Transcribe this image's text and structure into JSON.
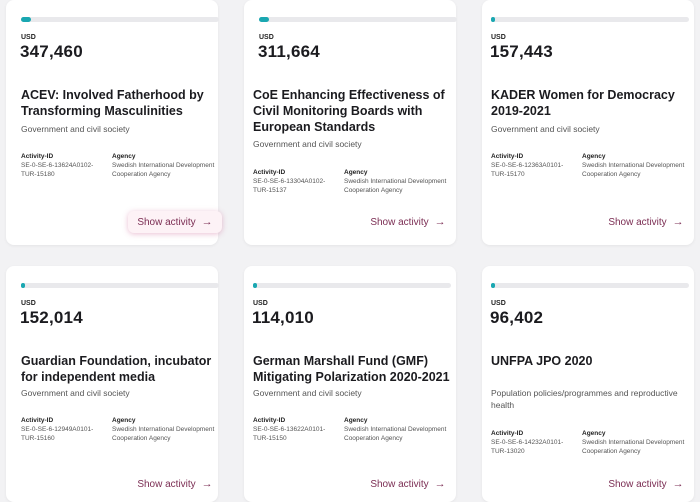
{
  "cards": [
    {
      "currency": "USD",
      "amount": "347,460",
      "progress": 0.05,
      "title": "ACEV: Involved Fatherhood by Transforming Masculinities",
      "sector": "Government and civil society",
      "activity_id_label": "Activity-ID",
      "activity_id": "SE-0-SE-6-13624A0102-TUR-15180",
      "agency_label": "Agency",
      "agency": "Swedish International Development Cooperation Agency",
      "button_label": "Show activity"
    },
    {
      "currency": "USD",
      "amount": "311,664",
      "progress": 0.05,
      "title": "CoE Enhancing Effectiveness of Civil Monitoring Boards with European Standards",
      "sector": "Government and civil society",
      "activity_id_label": "Activity-ID",
      "activity_id": "SE-0-SE-6-13304A0102-TUR-15137",
      "agency_label": "Agency",
      "agency": "Swedish International Development Cooperation Agency",
      "button_label": "Show activity"
    },
    {
      "currency": "USD",
      "amount": "157,443",
      "progress": 0.02,
      "title": "KADER Women for Democracy 2019-2021",
      "sector": "Government and civil society",
      "activity_id_label": "Activity-ID",
      "activity_id": "SE-0-SE-6-12363A0101-TUR-15170",
      "agency_label": "Agency",
      "agency": "Swedish International Development Cooperation Agency",
      "button_label": "Show activity"
    },
    {
      "currency": "USD",
      "amount": "152,014",
      "progress": 0.02,
      "title": "Guardian Foundation, incubator for independent media",
      "sector": "Government and civil society",
      "activity_id_label": "Activity-ID",
      "activity_id": "SE-0-SE-6-12949A0101-TUR-15160",
      "agency_label": "Agency",
      "agency": "Swedish International Development Cooperation Agency",
      "button_label": "Show activity"
    },
    {
      "currency": "USD",
      "amount": "114,010",
      "progress": 0.02,
      "title": "German Marshall Fund (GMF) Mitigating Polarization 2020-2021",
      "sector": "Government and civil society",
      "activity_id_label": "Activity-ID",
      "activity_id": "SE-0-SE-6-13622A0101-TUR-15150",
      "agency_label": "Agency",
      "agency": "Swedish International Development Cooperation Agency",
      "button_label": "Show activity"
    },
    {
      "currency": "USD",
      "amount": "96,402",
      "progress": 0.02,
      "title": "UNFPA JPO 2020",
      "sector": "Population policies/programmes and reproductive health",
      "activity_id_label": "Activity-ID",
      "activity_id": "SE-0-SE-6-14232A0101-TUR-13020",
      "agency_label": "Agency",
      "agency": "Swedish International Development Cooperation Agency",
      "button_label": "Show activity"
    }
  ],
  "colors": {
    "progress_fill": "#1aa7b1",
    "progress_track": "#e9e9ec",
    "button_text": "#7b2d53",
    "button_highlight_bg": "#fdf2f6"
  },
  "icons": {
    "button_arrow": "arrow-right-icon"
  }
}
